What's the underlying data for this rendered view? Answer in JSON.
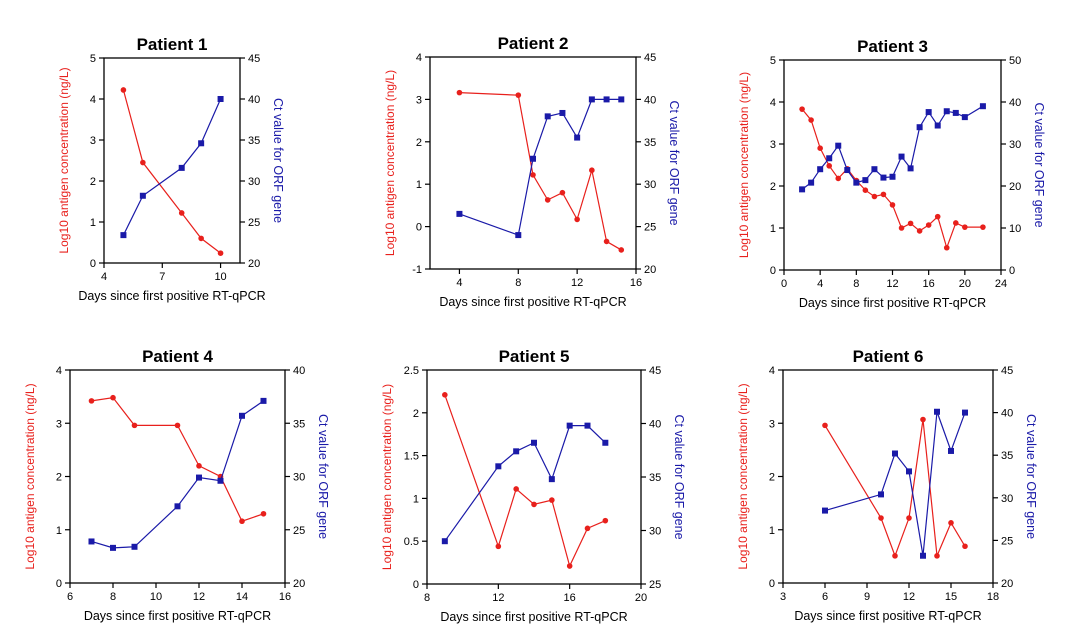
{
  "colors": {
    "antigen": "#e8201c",
    "ct": "#1a1aa8",
    "axis": "#000000"
  },
  "chart_data": [
    {
      "type": "line",
      "title": "Patient 1",
      "xlabel": "Days since first positive RT-qPCR",
      "ylabel_left": "Log10 antigen concentration  (ng/L)",
      "ylabel_right": "Ct value for ORF gene",
      "xlim": [
        4,
        11
      ],
      "xticks": [
        4,
        7,
        10
      ],
      "ylim_left": [
        0,
        5
      ],
      "yticks_left": [
        0,
        1,
        2,
        3,
        4,
        5
      ],
      "ylim_right": [
        20,
        45
      ],
      "yticks_right": [
        20,
        25,
        30,
        35,
        40,
        45
      ],
      "series": [
        {
          "axis": "left",
          "marker": "circle",
          "x": [
            5,
            6,
            8,
            9,
            10
          ],
          "y": [
            4.22,
            2.45,
            1.22,
            0.6,
            0.24
          ]
        },
        {
          "axis": "right",
          "marker": "square",
          "x": [
            5,
            6,
            8,
            9,
            10
          ],
          "y": [
            23.4,
            28.2,
            31.6,
            34.6,
            40.0
          ]
        }
      ]
    },
    {
      "type": "line",
      "title": "Patient 2",
      "xlabel": "Days since first positive RT-qPCR",
      "ylabel_left": "Log10 antigen concentration  (ng/L)",
      "ylabel_right": "Ct value for ORF gene",
      "xlim": [
        2,
        16
      ],
      "xticks": [
        4,
        8,
        12,
        16
      ],
      "ylim_left": [
        -1,
        4
      ],
      "yticks_left": [
        -1,
        0,
        1,
        2,
        3,
        4
      ],
      "ylim_right": [
        20,
        45
      ],
      "yticks_right": [
        20,
        25,
        30,
        35,
        40,
        45
      ],
      "series": [
        {
          "axis": "left",
          "marker": "circle",
          "x": [
            4,
            8,
            9,
            10,
            11,
            12,
            13,
            14,
            15
          ],
          "y": [
            3.16,
            3.1,
            1.22,
            0.63,
            0.8,
            0.17,
            1.33,
            -0.35,
            -0.55
          ]
        },
        {
          "axis": "right",
          "marker": "square",
          "x": [
            4,
            8,
            9,
            10,
            11,
            12,
            13,
            14,
            15
          ],
          "y": [
            26.5,
            24.0,
            33.0,
            38.0,
            38.4,
            35.5,
            40.0,
            40.0,
            40.0
          ]
        }
      ]
    },
    {
      "type": "line",
      "title": "Patient 3",
      "xlabel": "Days since first positive RT-qPCR",
      "ylabel_left": "Log10 antigen concentration  (ng/L)",
      "ylabel_right": "Ct value for ORF gene",
      "xlim": [
        0,
        24
      ],
      "xticks": [
        0,
        4,
        8,
        12,
        16,
        20,
        24
      ],
      "ylim_left": [
        0,
        5
      ],
      "yticks_left": [
        0,
        1,
        2,
        3,
        4,
        5
      ],
      "ylim_right": [
        0,
        50
      ],
      "yticks_right": [
        0,
        10,
        20,
        30,
        40,
        50
      ],
      "series": [
        {
          "axis": "left",
          "marker": "circle",
          "x": [
            2,
            3,
            4,
            5,
            6,
            7,
            8,
            9,
            10,
            11,
            12,
            13,
            14,
            15,
            16,
            17,
            18,
            19,
            20,
            22
          ],
          "y": [
            3.83,
            3.57,
            2.9,
            2.48,
            2.18,
            2.41,
            2.13,
            1.9,
            1.75,
            1.8,
            1.55,
            1.0,
            1.11,
            0.93,
            1.07,
            1.27,
            0.53,
            1.12,
            1.02,
            1.02
          ]
        },
        {
          "axis": "right",
          "marker": "square",
          "x": [
            2,
            3,
            4,
            5,
            6,
            7,
            8,
            9,
            10,
            11,
            12,
            13,
            14,
            15,
            16,
            17,
            18,
            19,
            20,
            22
          ],
          "y": [
            19.2,
            20.8,
            24.0,
            26.6,
            29.6,
            23.8,
            20.8,
            21.4,
            24.0,
            22.0,
            22.2,
            27.0,
            24.2,
            34.0,
            37.6,
            34.4,
            37.8,
            37.4,
            36.4,
            39.0
          ]
        }
      ]
    },
    {
      "type": "line",
      "title": "Patient 4",
      "xlabel": "Days since first positive RT-qPCR",
      "ylabel_left": "Log10 antigen concentration  (ng/L)",
      "ylabel_right": "Ct value for ORF gene",
      "xlim": [
        6,
        16
      ],
      "xticks": [
        6,
        8,
        10,
        12,
        14,
        16
      ],
      "ylim_left": [
        0,
        4
      ],
      "yticks_left": [
        0,
        1,
        2,
        3,
        4
      ],
      "ylim_right": [
        20,
        40
      ],
      "yticks_right": [
        20,
        25,
        30,
        35,
        40
      ],
      "series": [
        {
          "axis": "left",
          "marker": "circle",
          "x": [
            7,
            8,
            9,
            11,
            12,
            13,
            14,
            15
          ],
          "y": [
            3.42,
            3.48,
            2.96,
            2.96,
            2.2,
            2.0,
            1.16,
            1.3
          ]
        },
        {
          "axis": "right",
          "marker": "square",
          "x": [
            7,
            8,
            9,
            11,
            12,
            13,
            14,
            15
          ],
          "y": [
            23.9,
            23.3,
            23.4,
            27.2,
            29.9,
            29.6,
            35.7,
            37.1
          ]
        }
      ]
    },
    {
      "type": "line",
      "title": "Patient 5",
      "xlabel": "Days since first positive RT-qPCR",
      "ylabel_left": "Log10 antigen concentration  (ng/L)",
      "ylabel_right": "Ct value for ORF gene",
      "xlim": [
        8,
        20
      ],
      "xticks": [
        8,
        12,
        16,
        20
      ],
      "ylim_left": [
        0,
        2.5
      ],
      "yticks_left": [
        0,
        0.5,
        1.0,
        1.5,
        2.0,
        2.5
      ],
      "ylim_right": [
        25,
        45
      ],
      "yticks_right": [
        25,
        30,
        35,
        40,
        45
      ],
      "series": [
        {
          "axis": "left",
          "marker": "circle",
          "x": [
            9,
            12,
            13,
            14,
            15,
            16,
            17,
            18
          ],
          "y": [
            2.21,
            0.44,
            1.11,
            0.93,
            0.98,
            0.21,
            0.65,
            0.74
          ]
        },
        {
          "axis": "right",
          "marker": "square",
          "x": [
            9,
            12,
            13,
            14,
            15,
            16,
            17,
            18
          ],
          "y": [
            29.0,
            36.0,
            37.4,
            38.2,
            34.8,
            39.8,
            39.8,
            38.2
          ]
        }
      ]
    },
    {
      "type": "line",
      "title": "Patient 6",
      "xlabel": "Days since first positive RT-qPCR",
      "ylabel_left": "Log10 antigen concentration  (ng/L)",
      "ylabel_right": "Ct value for ORF gene",
      "xlim": [
        3,
        18
      ],
      "xticks": [
        3,
        6,
        9,
        12,
        15,
        18
      ],
      "ylim_left": [
        0,
        4
      ],
      "yticks_left": [
        0,
        1,
        2,
        3,
        4
      ],
      "ylim_right": [
        20,
        45
      ],
      "yticks_right": [
        20,
        25,
        30,
        35,
        40,
        45
      ],
      "series": [
        {
          "axis": "left",
          "marker": "circle",
          "x": [
            6,
            10,
            11,
            12,
            13,
            14,
            15,
            16
          ],
          "y": [
            2.96,
            1.22,
            0.51,
            1.22,
            3.07,
            0.51,
            1.13,
            0.69
          ]
        },
        {
          "axis": "right",
          "marker": "square",
          "x": [
            6,
            10,
            11,
            12,
            13,
            14,
            15,
            16
          ],
          "y": [
            28.5,
            30.4,
            35.2,
            33.1,
            23.2,
            40.1,
            35.5,
            40.0
          ]
        }
      ]
    }
  ]
}
